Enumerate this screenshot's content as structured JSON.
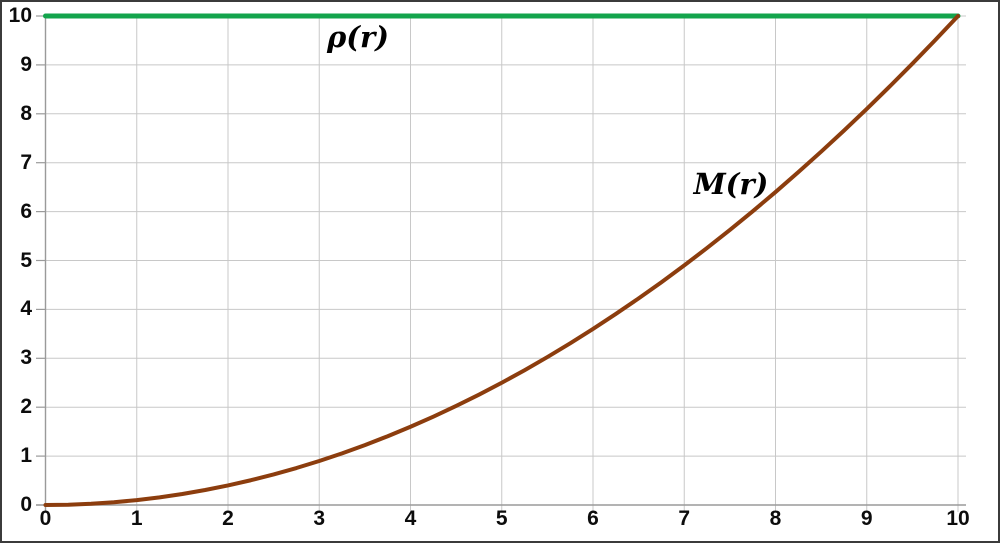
{
  "colors": {
    "rho_green": "#13A44C",
    "mass_brown": "#8C3D0E",
    "gridline": "#c8c8c8",
    "axis": "#9a9a9a",
    "border": "#3b3b3b",
    "label_text": "#0c0c0c"
  },
  "chart_data": {
    "type": "line",
    "title": "",
    "xlabel": "",
    "ylabel": "",
    "xlim": [
      0,
      10
    ],
    "ylim": [
      0,
      10
    ],
    "grid": true,
    "legend_position": "inline-annotations",
    "x_tick_values": [
      0,
      1,
      2,
      3,
      4,
      5,
      6,
      7,
      8,
      9,
      10
    ],
    "x_tick_labels": [
      "0",
      "1",
      "2",
      "3",
      "4",
      "5",
      "6",
      "7",
      "8",
      "9",
      "10"
    ],
    "y_tick_values": [
      0,
      1,
      2,
      3,
      4,
      5,
      6,
      7,
      8,
      9,
      10
    ],
    "y_tick_labels": [
      "0",
      "1",
      "2",
      "3",
      "4",
      "5",
      "6",
      "7",
      "8",
      "9",
      "10"
    ],
    "series": [
      {
        "name": "rho",
        "label": "ρ(r)",
        "color": "#13A44C",
        "stroke_width": 5,
        "x": [
          0,
          10
        ],
        "y": [
          10,
          10
        ]
      },
      {
        "name": "M",
        "label": "M(r)",
        "color": "#8C3D0E",
        "stroke_width": 4,
        "x": [
          0,
          0.25,
          0.5,
          0.75,
          1,
          1.25,
          1.5,
          1.75,
          2,
          2.25,
          2.5,
          2.75,
          3,
          3.25,
          3.5,
          3.75,
          4,
          4.25,
          4.5,
          4.75,
          5,
          5.25,
          5.5,
          5.75,
          6,
          6.25,
          6.5,
          6.75,
          7,
          7.25,
          7.5,
          7.75,
          8,
          8.25,
          8.5,
          8.75,
          9,
          9.25,
          9.5,
          9.75,
          10
        ],
        "y": [
          0,
          0.0063,
          0.025,
          0.0563,
          0.1,
          0.1563,
          0.225,
          0.3063,
          0.4,
          0.5063,
          0.625,
          0.7563,
          0.9,
          1.0563,
          1.225,
          1.4063,
          1.6,
          1.8063,
          2.025,
          2.2563,
          2.5,
          2.7563,
          3.025,
          3.3063,
          3.6,
          3.9063,
          4.225,
          4.5563,
          4.9,
          5.2563,
          5.625,
          6.0063,
          6.4,
          6.8063,
          7.225,
          7.6563,
          8.1,
          8.5563,
          9.025,
          9.5063,
          10
        ]
      }
    ]
  }
}
